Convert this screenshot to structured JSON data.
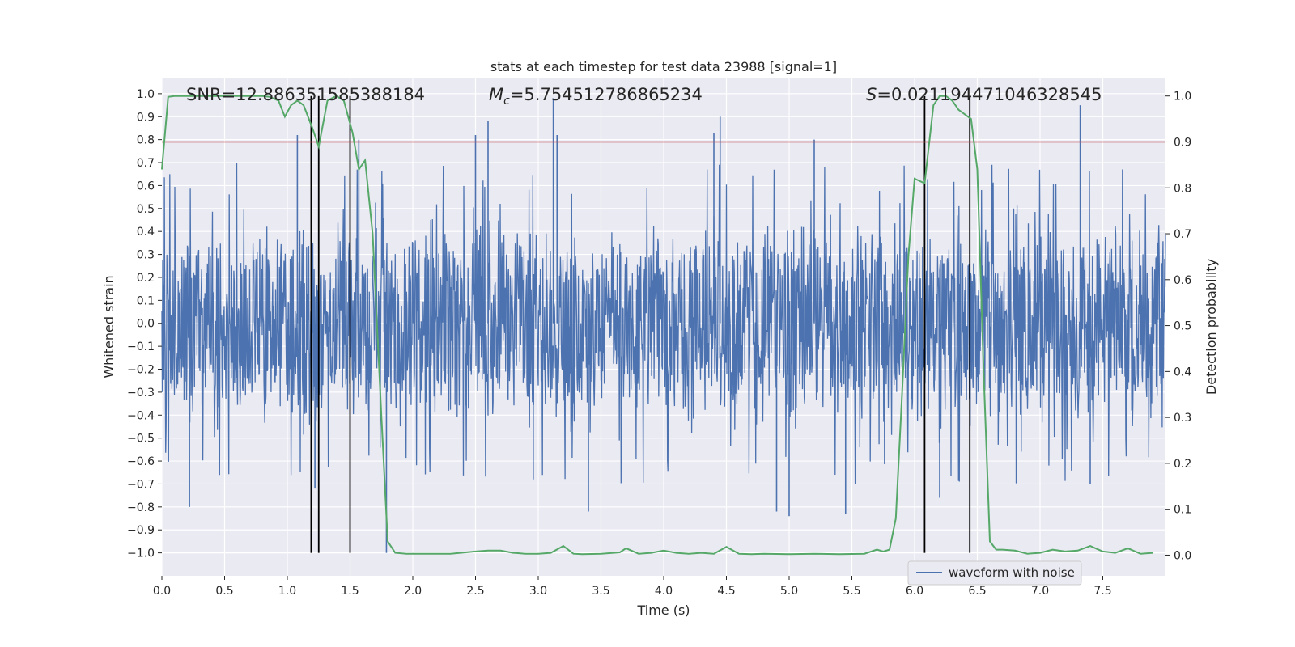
{
  "chart_data": {
    "type": "line",
    "title": "stats at each timestep for test data 23988 [signal=1]",
    "xlabel": "Time (s)",
    "ylabel": "Whitened strain",
    "y2label": "Detection probability",
    "xlim": [
      0.0,
      8.0
    ],
    "ylim": [
      -1.1,
      1.07
    ],
    "y2lim": [
      -0.045,
      1.04
    ],
    "xticks": [
      "0.0",
      "0.5",
      "1.0",
      "1.5",
      "2.0",
      "2.5",
      "3.0",
      "3.5",
      "4.0",
      "4.5",
      "5.0",
      "5.5",
      "6.0",
      "6.5",
      "7.0",
      "7.5"
    ],
    "xtick_values": [
      0.0,
      0.5,
      1.0,
      1.5,
      2.0,
      2.5,
      3.0,
      3.5,
      4.0,
      4.5,
      5.0,
      5.5,
      6.0,
      6.5,
      7.0,
      7.5
    ],
    "yticks": [
      "1.0",
      "0.9",
      "0.8",
      "0.7",
      "0.6",
      "0.5",
      "0.4",
      "0.3",
      "0.2",
      "0.1",
      "0.0",
      "−0.1",
      "−0.2",
      "−0.3",
      "−0.4",
      "−0.5",
      "−0.6",
      "−0.7",
      "−0.8",
      "−0.9",
      "−1.0"
    ],
    "ytick_values": [
      1.0,
      0.9,
      0.8,
      0.7,
      0.6,
      0.5,
      0.4,
      0.3,
      0.2,
      0.1,
      0.0,
      -0.1,
      -0.2,
      -0.3,
      -0.4,
      -0.5,
      -0.6,
      -0.7,
      -0.8,
      -0.9,
      -1.0
    ],
    "y2ticks": [
      "1.0",
      "0.9",
      "0.8",
      "0.7",
      "0.6",
      "0.5",
      "0.4",
      "0.3",
      "0.2",
      "0.1",
      "0.0"
    ],
    "y2tick_values": [
      1.0,
      0.9,
      0.8,
      0.7,
      0.6,
      0.5,
      0.4,
      0.3,
      0.2,
      0.1,
      0.0
    ],
    "annotations": {
      "snr": "SNR=12.886351585388184",
      "mc_symbol": "M",
      "mc_sub": "c",
      "mc_value": "=5.754512786865234",
      "s_symbol": "S",
      "s_value": "=0.021194471046328545"
    },
    "legend": {
      "label": "waveform with noise",
      "placement": "lower-right"
    },
    "threshold": {
      "axis": "right",
      "value": 0.9,
      "color": "#c44e52"
    },
    "vertical_lines": [
      1.19,
      1.25,
      1.5,
      6.08,
      6.44
    ],
    "waveform": {
      "name": "waveform with noise",
      "color": "#4c72b0",
      "axis": "left",
      "peaks_high": [
        [
          1.08,
          0.82
        ],
        [
          1.57,
          0.8
        ],
        [
          2.5,
          0.82
        ],
        [
          2.6,
          0.88
        ],
        [
          3.12,
          0.98
        ],
        [
          4.45,
          0.9
        ],
        [
          4.4,
          0.83
        ],
        [
          5.2,
          0.8
        ],
        [
          7.32,
          0.95
        ],
        [
          3.15,
          0.82
        ]
      ],
      "peaks_low": [
        [
          0.22,
          -0.8
        ],
        [
          1.22,
          -0.72
        ],
        [
          1.79,
          -1.0
        ],
        [
          3.4,
          -0.82
        ],
        [
          4.9,
          -0.82
        ],
        [
          5.0,
          -0.84
        ],
        [
          5.45,
          -0.83
        ],
        [
          2.96,
          -0.68
        ],
        [
          7.4,
          -0.7
        ],
        [
          6.2,
          -0.76
        ]
      ]
    },
    "probability": {
      "name": "detection probability",
      "color": "#55a868",
      "axis": "right",
      "x": [
        0.0,
        0.05,
        0.1,
        0.2,
        0.3,
        0.4,
        0.5,
        0.6,
        0.7,
        0.8,
        0.86,
        0.93,
        0.98,
        1.03,
        1.08,
        1.13,
        1.2,
        1.25,
        1.32,
        1.39,
        1.45,
        1.52,
        1.57,
        1.62,
        1.68,
        1.75,
        1.8,
        1.86,
        1.95,
        2.1,
        2.3,
        2.5,
        2.6,
        2.7,
        2.8,
        2.9,
        3.0,
        3.1,
        3.2,
        3.28,
        3.35,
        3.5,
        3.65,
        3.7,
        3.8,
        3.9,
        4.0,
        4.1,
        4.2,
        4.3,
        4.4,
        4.5,
        4.6,
        4.7,
        4.8,
        5.0,
        5.2,
        5.4,
        5.6,
        5.7,
        5.75,
        5.8,
        5.85,
        5.9,
        5.95,
        6.0,
        6.08,
        6.15,
        6.2,
        6.25,
        6.3,
        6.35,
        6.45,
        6.5,
        6.55,
        6.6,
        6.65,
        6.7,
        6.8,
        6.9,
        7.0,
        7.1,
        7.2,
        7.3,
        7.4,
        7.5,
        7.6,
        7.7,
        7.8,
        7.9
      ],
      "y": [
        0.84,
        0.998,
        1.0,
        1.0,
        1.0,
        1.0,
        1.0,
        1.0,
        1.0,
        1.0,
        0.998,
        0.99,
        0.955,
        0.98,
        0.99,
        0.98,
        0.93,
        0.89,
        0.99,
        1.0,
        0.99,
        0.92,
        0.84,
        0.86,
        0.7,
        0.3,
        0.03,
        0.005,
        0.003,
        0.003,
        0.003,
        0.008,
        0.01,
        0.01,
        0.005,
        0.003,
        0.003,
        0.005,
        0.02,
        0.003,
        0.002,
        0.003,
        0.006,
        0.015,
        0.003,
        0.005,
        0.01,
        0.005,
        0.003,
        0.005,
        0.003,
        0.018,
        0.003,
        0.002,
        0.003,
        0.002,
        0.003,
        0.002,
        0.003,
        0.012,
        0.008,
        0.012,
        0.08,
        0.35,
        0.65,
        0.82,
        0.81,
        0.98,
        1.0,
        1.0,
        0.99,
        0.97,
        0.95,
        0.84,
        0.4,
        0.03,
        0.012,
        0.012,
        0.01,
        0.003,
        0.005,
        0.012,
        0.008,
        0.01,
        0.02,
        0.008,
        0.005,
        0.015,
        0.003,
        0.005
      ]
    }
  }
}
